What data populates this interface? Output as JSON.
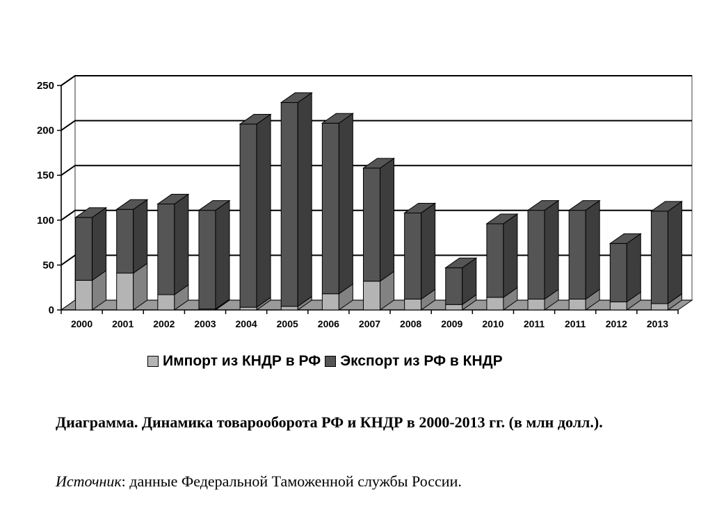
{
  "chart_data": {
    "type": "bar",
    "stacked": true,
    "three_d": true,
    "categories": [
      "2000",
      "2001",
      "2002",
      "2003",
      "2004",
      "2005",
      "2006",
      "2007",
      "2008",
      "2009",
      "2010",
      "2011",
      "2011",
      "2012",
      "2013"
    ],
    "series": [
      {
        "name": "Импорт из КНДР в РФ",
        "color": "#b4b4b4",
        "values": [
          33,
          41,
          17,
          1,
          3,
          4,
          18,
          32,
          12,
          6,
          14,
          12,
          12,
          9,
          7
        ]
      },
      {
        "name": "Экспорт из РФ в КНДР",
        "color": "#555555",
        "values": [
          70,
          71,
          101,
          110,
          204,
          227,
          190,
          126,
          96,
          41,
          82,
          99,
          99,
          65,
          103
        ]
      }
    ],
    "yticks": [
      "0",
      "50",
      "100",
      "150",
      "200",
      "250"
    ],
    "ylim": [
      0,
      250
    ],
    "grid": true,
    "legend_position": "bottom",
    "title": "",
    "xlabel": "",
    "ylabel": ""
  },
  "caption": {
    "text": "Диаграмма. Динамика товарооборота РФ и КНДР в 2000-2013 гг. (в млн долл.)."
  },
  "source": {
    "label": "Источник",
    "text": ": данные Федеральной Таможенной службы России."
  }
}
